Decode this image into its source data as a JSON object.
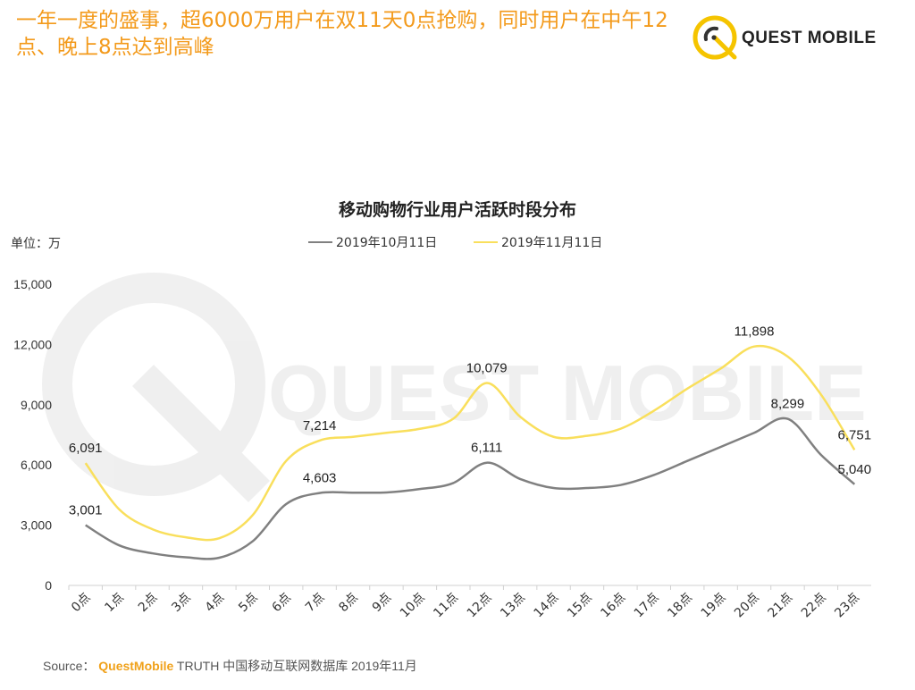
{
  "headline": "一年一度的盛事，超6000万用户在双11天0点抢购，同时用户在中午12点、晚上8点达到高峰",
  "logo": {
    "text": "QUEST MOBILE",
    "color": "#f5c400"
  },
  "watermark": "QUEST MOBILE",
  "unit_label": "单位：万",
  "source": {
    "prefix": "Source：",
    "brand": "QuestMobile",
    "rest": " TRUTH 中国移动互联网数据库 2019年11月"
  },
  "colors": {
    "accent": "#f39a1b",
    "series1": "#808080",
    "series2": "#f9df5c"
  },
  "chart_data": {
    "type": "line",
    "title": "移动购物行业用户活跃时段分布",
    "xlabel": "",
    "ylabel": "单位：万",
    "categories": [
      "0点",
      "1点",
      "2点",
      "3点",
      "4点",
      "5点",
      "6点",
      "7点",
      "8点",
      "9点",
      "10点",
      "11点",
      "12点",
      "13点",
      "14点",
      "15点",
      "16点",
      "17点",
      "18点",
      "19点",
      "20点",
      "21点",
      "22点",
      "23点"
    ],
    "yticks": [
      "0",
      "3,000",
      "6,000",
      "9,000",
      "12,000",
      "15,000"
    ],
    "ylim": [
      0,
      15000
    ],
    "grid": false,
    "legend": "top-center",
    "series": [
      {
        "name": "2019年10月11日",
        "color": "#808080",
        "values": [
          3001,
          2000,
          1600,
          1400,
          1380,
          2200,
          4050,
          4603,
          4620,
          4630,
          4800,
          5100,
          6111,
          5300,
          4850,
          4850,
          5000,
          5500,
          6200,
          6900,
          7600,
          8299,
          6500,
          5040
        ],
        "labels": [
          {
            "i": 0,
            "text": "3,001"
          },
          {
            "i": 7,
            "text": "4,603"
          },
          {
            "i": 12,
            "text": "6,111"
          },
          {
            "i": 21,
            "text": "8,299"
          },
          {
            "i": 23,
            "text": "5,040"
          }
        ]
      },
      {
        "name": "2019年11月11日",
        "color": "#f9df5c",
        "values": [
          6091,
          3800,
          2800,
          2400,
          2350,
          3500,
          6200,
          7214,
          7400,
          7600,
          7800,
          8300,
          10079,
          8400,
          7400,
          7450,
          7800,
          8700,
          9800,
          10800,
          11898,
          11400,
          9500,
          6751
        ],
        "labels": [
          {
            "i": 0,
            "text": "6,091"
          },
          {
            "i": 7,
            "text": "7,214"
          },
          {
            "i": 12,
            "text": "10,079"
          },
          {
            "i": 20,
            "text": "11,898"
          },
          {
            "i": 23,
            "text": "6,751"
          }
        ]
      }
    ]
  }
}
